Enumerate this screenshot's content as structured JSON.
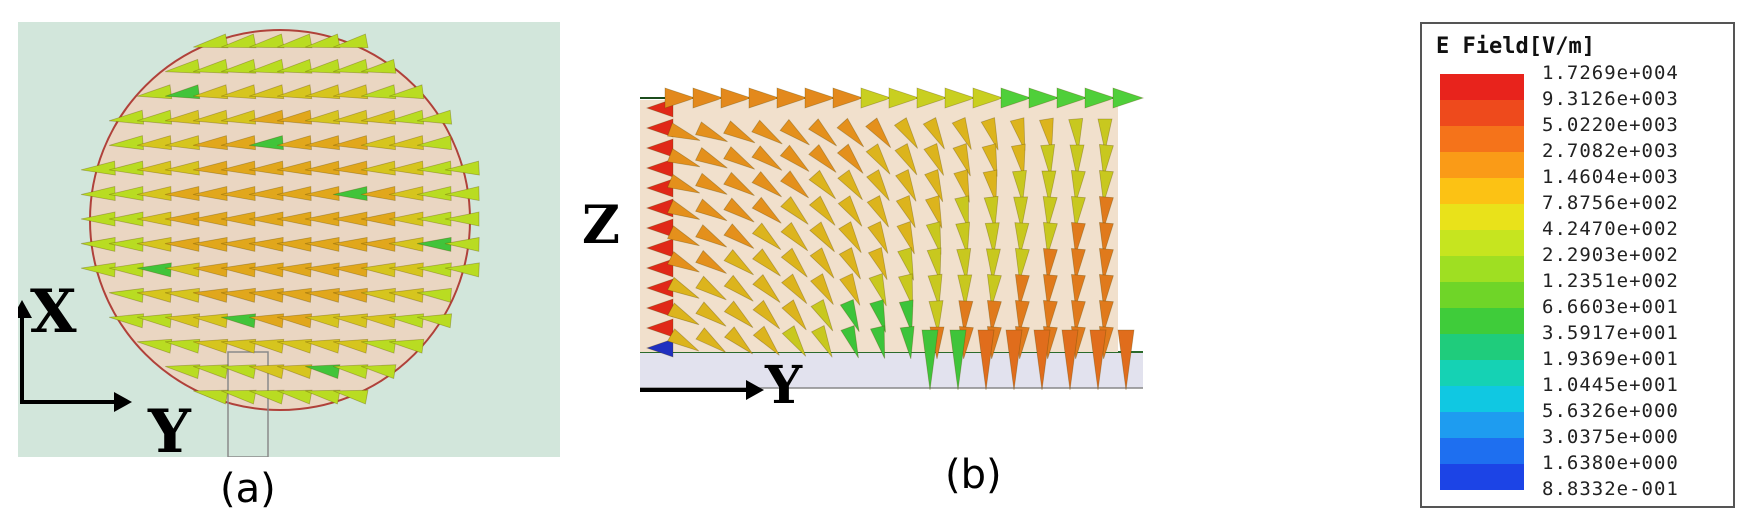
{
  "panel_a": {
    "axis_vertical": "X",
    "axis_horizontal": "Y",
    "caption": "(a)"
  },
  "panel_b": {
    "axis_vertical": "Z",
    "axis_horizontal": "Y",
    "caption": "(b)"
  },
  "legend": {
    "title": "E Field[V/m]",
    "values": [
      "1.7269e+004",
      "9.3126e+003",
      "5.0220e+003",
      "2.7082e+003",
      "1.4604e+003",
      "7.8756e+002",
      "4.2470e+002",
      "2.2903e+002",
      "1.2351e+002",
      "6.6603e+001",
      "3.5917e+001",
      "1.9369e+001",
      "1.0445e+001",
      "5.6326e+000",
      "3.0375e+000",
      "1.6380e+000",
      "8.8332e-001"
    ],
    "colors": [
      "#e8231c",
      "#ee4a1c",
      "#f5731a",
      "#fa9b17",
      "#fcc214",
      "#e9e21a",
      "#c6e51f",
      "#9fdf22",
      "#6fd528",
      "#3fcc3a",
      "#1fcc7c",
      "#15d2b4",
      "#10c8e2",
      "#1e9cf0",
      "#1e6ff0",
      "#1c44e6"
    ]
  }
}
